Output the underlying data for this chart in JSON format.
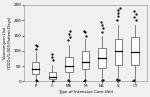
{
  "categories": [
    "P",
    "C",
    "MS",
    "M",
    "NS",
    "S",
    "CT"
  ],
  "xlabel": "Type of Intensive Care Unit",
  "ylabel": "Vancomycin Use\n(DDDs/1,000 Patient-Days)",
  "ylim": [
    0,
    250
  ],
  "yticks": [
    0,
    50,
    100,
    150,
    200,
    250
  ],
  "background_color": "#f0f0f0",
  "box_facecolor": "white",
  "box_edgecolor": "#555555",
  "median_color": "black",
  "whisker_color": "#555555",
  "flier_color": "black",
  "boxplots": [
    {
      "label": "P",
      "q1": 25,
      "median": 40,
      "q3": 65,
      "whislo": 5,
      "whishi": 95,
      "fliers_lo": [
        2,
        3
      ],
      "fliers_hi": [
        105,
        115,
        120
      ]
    },
    {
      "label": "C",
      "q1": 8,
      "median": 15,
      "q3": 30,
      "whislo": 2,
      "whishi": 55,
      "fliers_lo": [
        1
      ],
      "fliers_hi": [
        70,
        80,
        90
      ]
    },
    {
      "label": "MS",
      "q1": 30,
      "median": 50,
      "q3": 80,
      "whislo": 5,
      "whishi": 120,
      "fliers_lo": [
        2,
        3
      ],
      "fliers_hi": [
        135,
        145,
        155,
        165
      ]
    },
    {
      "label": "M",
      "q1": 40,
      "median": 65,
      "q3": 100,
      "whislo": 8,
      "whishi": 140,
      "fliers_lo": [
        2,
        4
      ],
      "fliers_hi": [
        150,
        160,
        165
      ]
    },
    {
      "label": "NS",
      "q1": 45,
      "median": 75,
      "q3": 110,
      "whislo": 10,
      "whishi": 150,
      "fliers_lo": [
        3,
        5
      ],
      "fliers_hi": [
        160,
        175,
        185,
        195
      ]
    },
    {
      "label": "S",
      "q1": 55,
      "median": 100,
      "q3": 140,
      "whislo": 15,
      "whishi": 185,
      "fliers_lo": [
        3,
        5,
        8
      ],
      "fliers_hi": [
        200,
        215,
        225,
        235,
        240
      ]
    },
    {
      "label": "CT",
      "q1": 55,
      "median": 95,
      "q3": 145,
      "whislo": 8,
      "whishi": 185,
      "fliers_lo": [
        2,
        4
      ],
      "fliers_hi": [
        200,
        210,
        220,
        230
      ]
    }
  ]
}
